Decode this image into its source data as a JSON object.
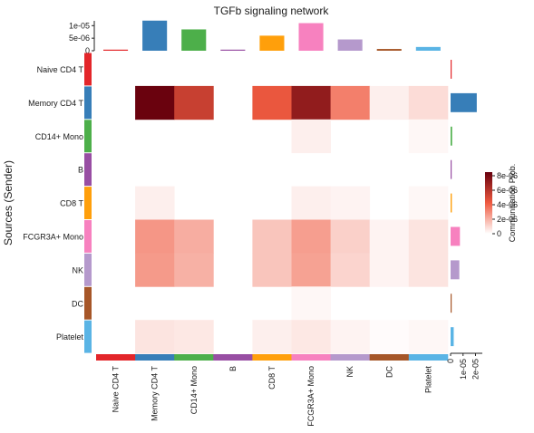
{
  "chart_data": {
    "type": "heatmap",
    "title": "TGFb signaling network",
    "ylabel": "Sources (Sender)",
    "legend_title": "Communication Prob.",
    "legend_ticks": [
      "8e-06",
      "6e-06",
      "4e-06",
      "2e-06",
      "0"
    ],
    "legend_ticks_values": [
      8e-06,
      6e-06,
      4e-06,
      2e-06,
      0
    ],
    "legend_max": 8.5e-06,
    "colors": {
      "low": "#ffffff",
      "mid": "#ef5a40",
      "high": "#67000d"
    },
    "rows": [
      "Naive CD4 T",
      "Memory CD4 T",
      "CD14+ Mono",
      "B",
      "CD8 T",
      "FCGR3A+ Mono",
      "NK",
      "DC",
      "Platelet"
    ],
    "cols": [
      "Naive CD4 T",
      "Memory CD4 T",
      "CD14+ Mono",
      "B",
      "CD8 T",
      "FCGR3A+ Mono",
      "NK",
      "DC",
      "Platelet"
    ],
    "group_colors": [
      "#e3262a",
      "#377eb8",
      "#4daf4a",
      "#984ea3",
      "#ff9f0b",
      "#f781bf",
      "#b599cc",
      "#a65628",
      "#5ab4e5"
    ],
    "values": [
      [
        0,
        0,
        0,
        0,
        0,
        0,
        0,
        0,
        0
      ],
      [
        0,
        8.4e-06,
        5.5e-06,
        0,
        4.4e-06,
        7.2e-06,
        3.3e-06,
        4e-07,
        9e-07
      ],
      [
        0,
        0,
        0,
        0,
        0,
        4e-07,
        0,
        0,
        2e-07
      ],
      [
        0,
        0,
        0,
        0,
        0,
        0,
        0,
        0,
        0
      ],
      [
        0,
        4e-07,
        0,
        0,
        0,
        4e-07,
        3e-07,
        0,
        2e-07
      ],
      [
        0,
        2.7e-06,
        2.1e-06,
        0,
        1.5e-06,
        2.5e-06,
        1.2e-06,
        3e-07,
        7e-07
      ],
      [
        0,
        2.6e-06,
        2e-06,
        0,
        1.5e-06,
        2.4e-06,
        1.1e-06,
        3e-07,
        7e-07
      ],
      [
        0,
        0,
        0,
        0,
        0,
        2e-07,
        0,
        0,
        0
      ],
      [
        0,
        7e-07,
        6e-07,
        0,
        4e-07,
        6e-07,
        3e-07,
        1e-07,
        2e-07
      ]
    ],
    "top_bar": {
      "ticks": [
        "1e-05",
        "5e-06",
        "0"
      ],
      "ticks_values": [
        1e-05,
        5e-06,
        0
      ],
      "max": 1.3e-05,
      "values": [
        1.5e-07,
        1.2e-05,
        8.5e-06,
        1.5e-07,
        6e-06,
        1.1e-05,
        4.5e-06,
        7e-07,
        1.5e-06
      ]
    },
    "right_bar": {
      "ticks": [
        "0",
        "1e-05",
        "2e-05"
      ],
      "ticks_values": [
        0,
        1e-05,
        2e-05
      ],
      "max": 2.4e-05,
      "values": [
        1e-07,
        2.1e-05,
        1.2e-06,
        1e-07,
        1e-06,
        7.5e-06,
        7e-06,
        5e-07,
        2.5e-06
      ]
    }
  }
}
